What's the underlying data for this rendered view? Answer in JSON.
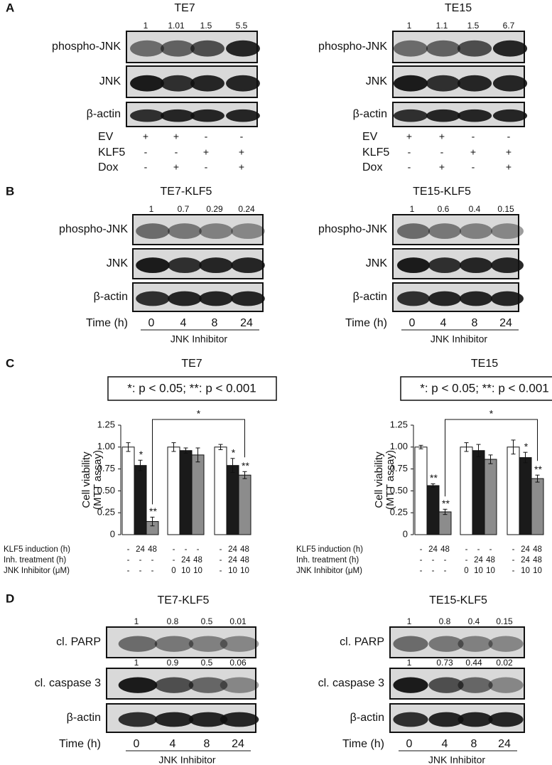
{
  "panels": {
    "A": {
      "label": "A",
      "blots": [
        {
          "title": "TE7",
          "rows": [
            {
              "name": "phospho-JNK",
              "quant": [
                "1",
                "1.01",
                "1.5",
                "5.5"
              ]
            },
            {
              "name": "JNK"
            },
            {
              "name": "β-actin"
            }
          ],
          "conditions": [
            {
              "label": "EV",
              "marks": [
                "+",
                "+",
                "-",
                "-"
              ]
            },
            {
              "label": "KLF5",
              "marks": [
                "-",
                "-",
                "+",
                "+"
              ]
            },
            {
              "label": "Dox",
              "marks": [
                "-",
                "+",
                "-",
                "+"
              ]
            }
          ]
        },
        {
          "title": "TE15",
          "rows": [
            {
              "name": "phospho-JNK",
              "quant": [
                "1",
                "1.1",
                "1.5",
                "6.7"
              ]
            },
            {
              "name": "JNK"
            },
            {
              "name": "β-actin"
            }
          ],
          "conditions": [
            {
              "label": "EV",
              "marks": [
                "+",
                "+",
                "-",
                "-"
              ]
            },
            {
              "label": "KLF5",
              "marks": [
                "-",
                "-",
                "+",
                "+"
              ]
            },
            {
              "label": "Dox",
              "marks": [
                "-",
                "+",
                "-",
                "+"
              ]
            }
          ]
        }
      ]
    },
    "B": {
      "label": "B",
      "blots": [
        {
          "title": "TE7-KLF5",
          "rows": [
            {
              "name": "phospho-JNK",
              "quant": [
                "1",
                "0.7",
                "0.29",
                "0.24"
              ]
            },
            {
              "name": "JNK"
            },
            {
              "name": "β-actin"
            }
          ],
          "time_label": "Time (h)",
          "times": [
            "0",
            "4",
            "8",
            "24"
          ],
          "treatment": "JNK Inhibitor"
        },
        {
          "title": "TE15-KLF5",
          "rows": [
            {
              "name": "phospho-JNK",
              "quant": [
                "1",
                "0.6",
                "0.4",
                "0.15"
              ]
            },
            {
              "name": "JNK"
            },
            {
              "name": "β-actin"
            }
          ],
          "time_label": "Time (h)",
          "times": [
            "0",
            "4",
            "8",
            "24"
          ],
          "treatment": "JNK Inhibitor"
        }
      ]
    },
    "C": {
      "label": "C"
    },
    "D": {
      "label": "D",
      "blots": [
        {
          "title": "TE7-KLF5",
          "rows": [
            {
              "name": "cl. PARP",
              "quant": [
                "1",
                "0.8",
                "0.5",
                "0.01"
              ]
            },
            {
              "name": "cl. caspase 3",
              "quant": [
                "1",
                "0.9",
                "0.5",
                "0.06"
              ]
            },
            {
              "name": "β-actin"
            }
          ],
          "time_label": "Time (h)",
          "times": [
            "0",
            "4",
            "8",
            "24"
          ],
          "treatment": "JNK Inhibitor"
        },
        {
          "title": "TE15-KLF5",
          "rows": [
            {
              "name": "cl. PARP",
              "quant": [
                "1",
                "0.8",
                "0.4",
                "0.15"
              ]
            },
            {
              "name": "cl. caspase 3",
              "quant": [
                "1",
                "0.73",
                "0.44",
                "0.02"
              ]
            },
            {
              "name": "β-actin"
            }
          ],
          "time_label": "Time (h)",
          "times": [
            "0",
            "4",
            "8",
            "24"
          ],
          "treatment": "JNK Inhibitor"
        }
      ]
    }
  },
  "chart_data": [
    {
      "type": "bar",
      "title": "TE7",
      "annotation": "*: p < 0.05; **: p < 0.001",
      "ylabel": [
        "Cell viability",
        "(MTT assay)"
      ],
      "ylim": [
        0,
        1.25
      ],
      "yticks": [
        0,
        0.25,
        {
          "value": 0.5,
          "label": "0.50"
        },
        0.75,
        {
          "value": 1,
          "label": "1.00"
        },
        1.25
      ],
      "values": [
        1.0,
        0.79,
        0.15,
        1.0,
        0.96,
        0.91,
        1.0,
        0.79,
        0.68
      ],
      "errors": [
        0.05,
        0.06,
        0.05,
        0.05,
        0.03,
        0.08,
        0.03,
        0.08,
        0.04
      ],
      "colors": [
        "#ffffff",
        "#1a1a1a",
        "#8c8c8c",
        "#ffffff",
        "#1a1a1a",
        "#8c8c8c",
        "#ffffff",
        "#1a1a1a",
        "#8c8c8c"
      ],
      "stars": [
        null,
        "*",
        "**",
        null,
        null,
        null,
        null,
        "*",
        "**"
      ],
      "bracket_label": "*",
      "rows": [
        {
          "label": "KLF5 induction (h)",
          "cells": [
            "-",
            "24",
            "48",
            "-",
            "-",
            "-",
            "-",
            "24",
            "48"
          ]
        },
        {
          "label": "Inh. treatment (h)",
          "cells": [
            "-",
            "-",
            "-",
            "-",
            "24",
            "48",
            "-",
            "24",
            "48"
          ]
        },
        {
          "label": "JNK Inhibitor (μM)",
          "cells": [
            "-",
            "-",
            "-",
            "0",
            "10",
            "10",
            "-",
            "10",
            "10"
          ]
        }
      ]
    },
    {
      "type": "bar",
      "title": "TE15",
      "annotation": "*: p < 0.05; **: p < 0.001",
      "ylabel": [
        "Cell viability",
        "(MTT assay)"
      ],
      "ylim": [
        0,
        1.25
      ],
      "yticks": [
        0,
        0.25,
        {
          "value": 0.5,
          "label": "0.50"
        },
        0.75,
        {
          "value": 1,
          "label": "1.00"
        },
        1.25
      ],
      "values": [
        1.0,
        0.56,
        0.26,
        1.0,
        0.96,
        0.86,
        1.0,
        0.88,
        0.64
      ],
      "errors": [
        0.02,
        0.02,
        0.03,
        0.05,
        0.07,
        0.05,
        0.08,
        0.06,
        0.04
      ],
      "colors": [
        "#ffffff",
        "#1a1a1a",
        "#8c8c8c",
        "#ffffff",
        "#1a1a1a",
        "#8c8c8c",
        "#ffffff",
        "#1a1a1a",
        "#8c8c8c"
      ],
      "stars": [
        null,
        "**",
        "**",
        null,
        null,
        null,
        null,
        "*",
        "**"
      ],
      "bracket_label": "*",
      "rows": [
        {
          "label": "KLF5 induction (h)",
          "cells": [
            "-",
            "24",
            "48",
            "-",
            "-",
            "-",
            "-",
            "24",
            "48"
          ]
        },
        {
          "label": "Inh. treatment (h)",
          "cells": [
            "-",
            "-",
            "-",
            "-",
            "24",
            "48",
            "-",
            "24",
            "48"
          ]
        },
        {
          "label": "JNK Inhibitor (μM)",
          "cells": [
            "-",
            "-",
            "-",
            "0",
            "10",
            "10",
            "-",
            "10",
            "10"
          ]
        }
      ]
    }
  ]
}
